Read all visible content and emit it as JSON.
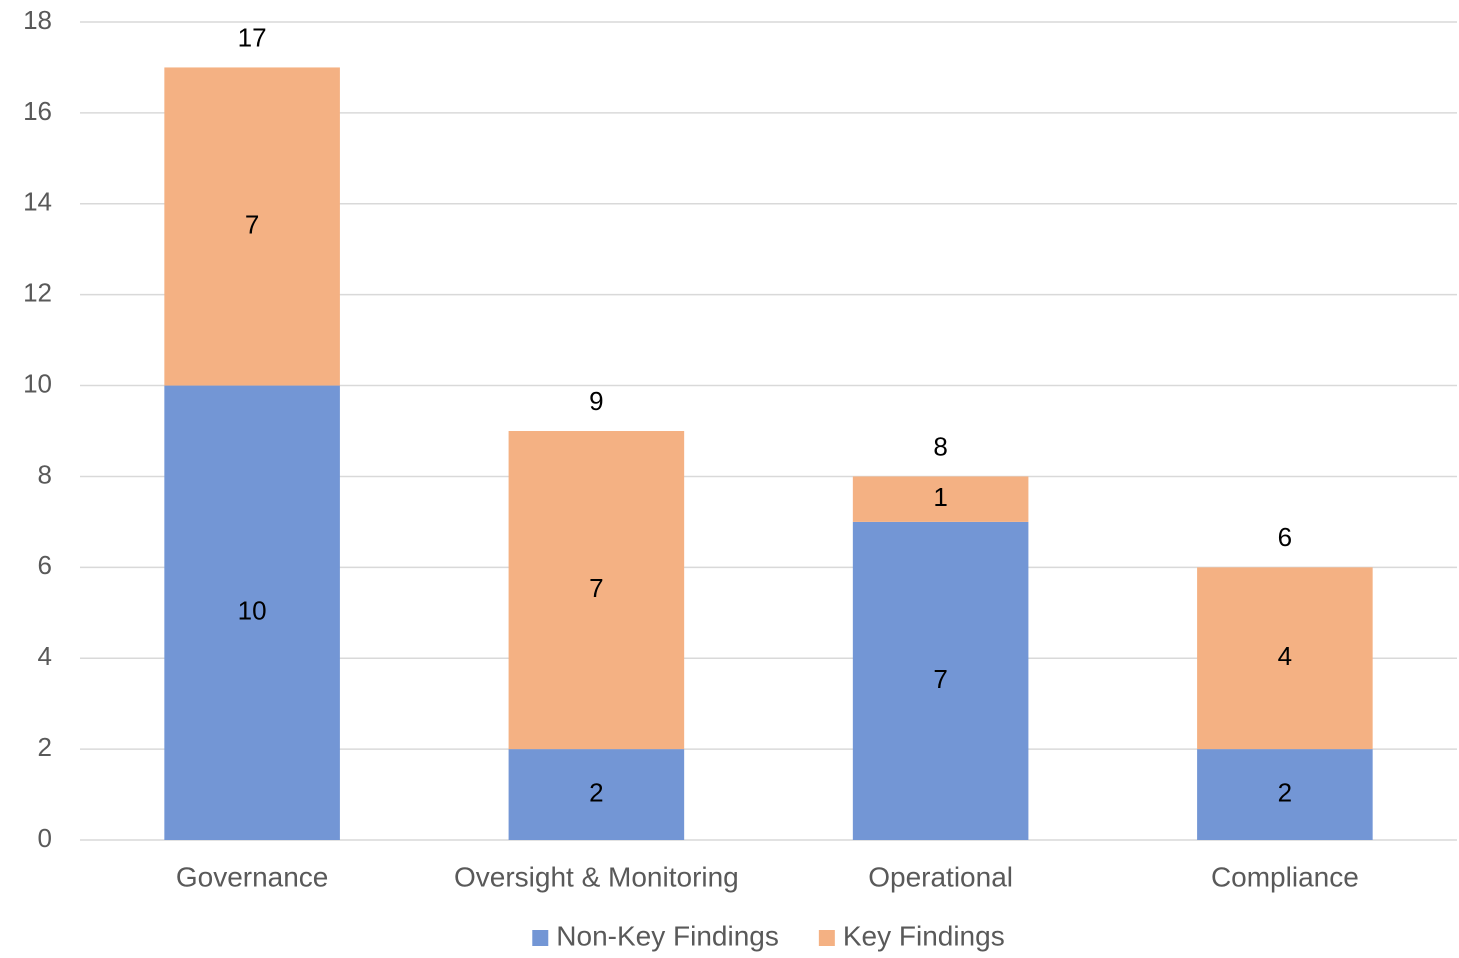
{
  "chart_data": {
    "type": "stacked_bar",
    "categories": [
      "Governance",
      "Oversight & Monitoring",
      "Operational",
      "Compliance"
    ],
    "series": [
      {
        "name": "Non-Key Findings",
        "color": "#7396d5",
        "values": [
          10,
          2,
          7,
          2
        ]
      },
      {
        "name": "Key Findings",
        "color": "#f4b183",
        "values": [
          7,
          7,
          1,
          4
        ]
      }
    ],
    "totals": [
      17,
      9,
      8,
      6
    ],
    "ylim": [
      0,
      18
    ],
    "yticks": [
      0,
      2,
      4,
      6,
      8,
      10,
      12,
      14,
      16,
      18
    ],
    "grid": true,
    "legend": "bottom"
  }
}
